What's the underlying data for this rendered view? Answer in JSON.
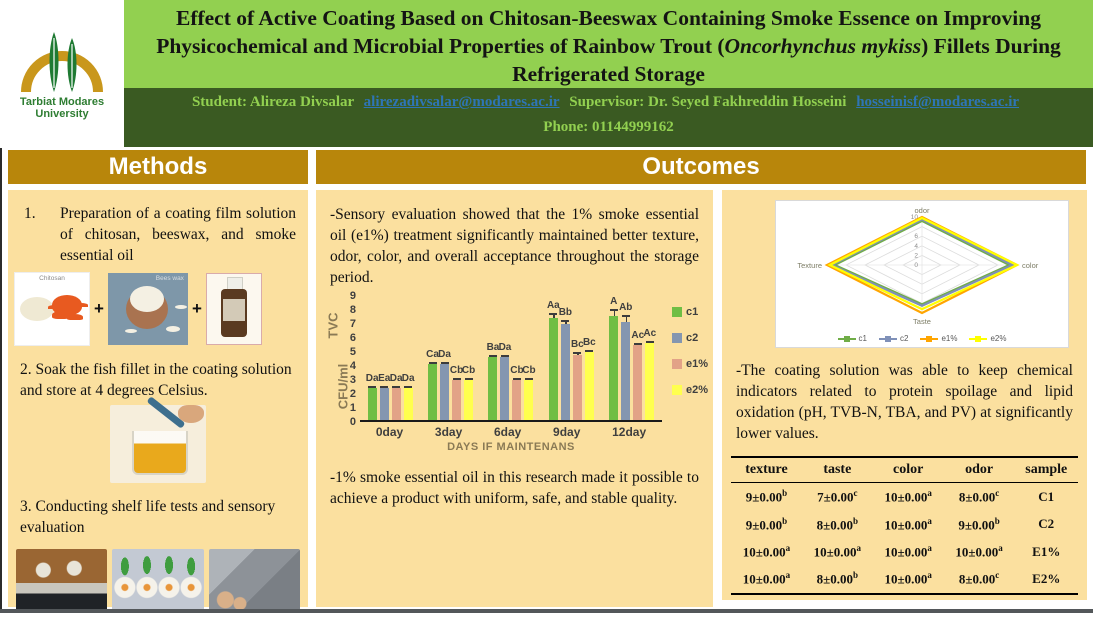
{
  "header": {
    "logo": {
      "line1": "Tarbiat Modares",
      "line2": "University"
    },
    "title_part1": "Effect of Active Coating Based on Chitosan-Beeswax Containing Smoke Essence on Improving Physicochemical and Microbial Properties of Rainbow Trout (",
    "title_italic": "Oncorhynchus mykiss",
    "title_part2": ") Fillets During Refrigerated Storage",
    "info": {
      "student_label": "Student: Alireza Divsalar",
      "student_email": "alirezadivsalar@modares.ac.ir",
      "supervisor_label": "Supervisor: Dr. Seyed Fakhreddin Hosseini",
      "supervisor_email": "hosseinisf@modares.ac.ir",
      "phone": "Phone: 01144999162"
    }
  },
  "sections": {
    "methods": "Methods",
    "outcomes": "Outcomes"
  },
  "methods": {
    "step1_number": "1.",
    "step1": "Preparation of a coating film solution of chitosan, beeswax, and smoke essential oil",
    "img_labels": {
      "chitosan": "Chitosan",
      "beeswax": "Bees wax"
    },
    "plus": "+",
    "step2": "2. Soak the fish fillet in the coating solution and store at 4 degrees Celsius.",
    "step3": "3. Conducting shelf life tests and sensory evaluation"
  },
  "outcomes": {
    "p1": "-Sensory evaluation showed that the 1% smoke essential oil (e1%) treatment significantly maintained better texture, odor, color, and overall acceptance throughout the storage period.",
    "p2": "-1% smoke essential oil in this research made it possible to achieve a product with uniform, safe, and stable quality.",
    "p3": "-The coating solution was able to keep chemical indicators related to protein spoilage and lipid oxidation (pH, TVB-N, TBA, and PV) at significantly lower values."
  },
  "colors": {
    "title_bg": "#92D050",
    "info_bg": "#3A5A22",
    "header_gold": "#B8860B",
    "panel_tan": "#FBE09F",
    "link_blue": "#2E75B6"
  },
  "chart_data": [
    {
      "type": "bar",
      "title": "",
      "xlabel": "DAYS IF MAINTENANS",
      "ylabel_top": "TVC",
      "ylabel_bottom": "CFU/ml",
      "ylim": [
        0,
        9
      ],
      "yticks": [
        0,
        1,
        2,
        3,
        4,
        5,
        6,
        7,
        8,
        9
      ],
      "grid": false,
      "legend_position": "right",
      "categories": [
        "0day",
        "3day",
        "6day",
        "9day",
        "12day"
      ],
      "series": [
        {
          "name": "c1",
          "color": "#6FBE44",
          "values": [
            2.3,
            4.0,
            4.55,
            7.3,
            7.45
          ],
          "labels": [
            "Da",
            "Ca",
            "Ba",
            "Aa",
            "A"
          ],
          "error_up": [
            0.12,
            0.15,
            0.15,
            0.35,
            0.5
          ]
        },
        {
          "name": "c2",
          "color": "#8496B0",
          "values": [
            2.3,
            4.0,
            4.5,
            6.9,
            7.05
          ],
          "labels": [
            "Ea",
            "Da",
            "Da",
            "Bb",
            "Ab"
          ],
          "error_up": [
            0.12,
            0.15,
            0.15,
            0.3,
            0.5
          ]
        },
        {
          "name": "e1%",
          "color": "#E2A287",
          "values": [
            2.3,
            2.9,
            2.9,
            4.7,
            5.4
          ],
          "labels": [
            "Da",
            "Cb",
            "Cb",
            "Bc",
            "Ac"
          ],
          "error_up": [
            0.12,
            0.15,
            0.15,
            0.15,
            0.15
          ]
        },
        {
          "name": "e2%",
          "color": "#FFFF4E",
          "values": [
            2.3,
            2.9,
            2.9,
            4.9,
            5.5
          ],
          "labels": [
            "Da",
            "Cb",
            "Cb",
            "Bc",
            "Ac"
          ],
          "error_up": [
            0.12,
            0.15,
            0.15,
            0.15,
            0.15
          ]
        }
      ]
    },
    {
      "type": "radar",
      "axes": [
        "odor",
        "color",
        "Taste",
        "Texture"
      ],
      "ticks": [
        0,
        2,
        4,
        6,
        8,
        10
      ],
      "max": 10,
      "legend_position": "bottom",
      "series": [
        {
          "name": "c1",
          "color": "#70AD47",
          "values": [
            9.2,
            9.2,
            8.2,
            9.2
          ]
        },
        {
          "name": "c2",
          "color": "#7F90B8",
          "values": [
            9.5,
            9.5,
            8.5,
            9.5
          ]
        },
        {
          "name": "e1%",
          "color": "#FFA500",
          "values": [
            10,
            10,
            10,
            10
          ]
        },
        {
          "name": "e2%",
          "color": "#FFFF00",
          "values": [
            9.8,
            10,
            9.2,
            9.7
          ]
        }
      ]
    },
    {
      "type": "table",
      "columns": [
        "texture",
        "taste",
        "color",
        "odor",
        "sample"
      ],
      "rows": [
        [
          {
            "v": "9±0.00",
            "s": "b"
          },
          {
            "v": "7±0.00",
            "s": "c"
          },
          {
            "v": "10±0.00",
            "s": "a"
          },
          {
            "v": "8±0.00",
            "s": "c"
          },
          {
            "v": "C1",
            "s": ""
          }
        ],
        [
          {
            "v": "9±0.00",
            "s": "b"
          },
          {
            "v": "8±0.00",
            "s": "b"
          },
          {
            "v": "10±0.00",
            "s": "a"
          },
          {
            "v": "9±0.00",
            "s": "b"
          },
          {
            "v": "C2",
            "s": ""
          }
        ],
        [
          {
            "v": "10±0.00",
            "s": "a"
          },
          {
            "v": "10±0.00",
            "s": "a"
          },
          {
            "v": "10±0.00",
            "s": "a"
          },
          {
            "v": "10±0.00",
            "s": "a"
          },
          {
            "v": "E1%",
            "s": ""
          }
        ],
        [
          {
            "v": "10±0.00",
            "s": "a"
          },
          {
            "v": "8±0.00",
            "s": "b"
          },
          {
            "v": "10±0.00",
            "s": "a"
          },
          {
            "v": "8±0.00",
            "s": "c"
          },
          {
            "v": "E2%",
            "s": ""
          }
        ]
      ]
    }
  ]
}
